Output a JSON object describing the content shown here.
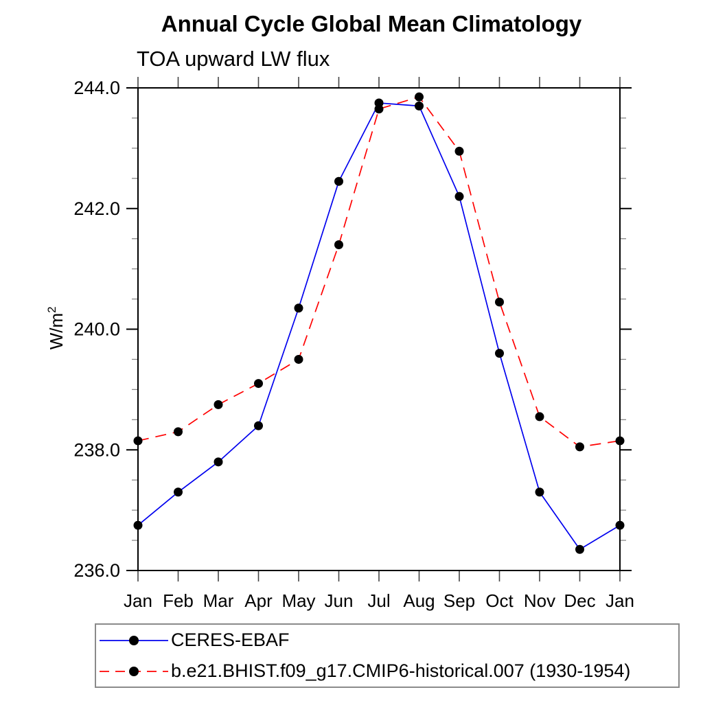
{
  "chart": {
    "title": "Annual Cycle Global Mean Climatology",
    "subtitle": "TOA upward LW flux",
    "ylabel_base": "W/m",
    "ylabel_sup": "2"
  },
  "chart_data": {
    "type": "line",
    "title": "Annual Cycle Global Mean Climatology",
    "subtitle": "TOA upward LW flux",
    "xlabel": "",
    "ylabel": "W/m^2",
    "categories": [
      "Jan",
      "Feb",
      "Mar",
      "Apr",
      "May",
      "Jun",
      "Jul",
      "Aug",
      "Sep",
      "Oct",
      "Nov",
      "Dec",
      "Jan"
    ],
    "ylim": [
      236.0,
      244.0
    ],
    "ytick_major": [
      236.0,
      238.0,
      240.0,
      242.0,
      244.0
    ],
    "ytick_major_labels": [
      "236.0",
      "238.0",
      "240.0",
      "242.0",
      "244.0"
    ],
    "ytick_minor_step": 0.5,
    "grid": false,
    "legend_position": "bottom-left",
    "axis_color": "#000000",
    "minor_tick_color": "#888888",
    "month_tick_color": "#444444",
    "marker_color": "#000000",
    "series": [
      {
        "name": "CERES-EBAF",
        "color": "#0000ee",
        "style": "solid",
        "marker": "circle",
        "values": [
          236.75,
          237.3,
          237.8,
          238.4,
          240.35,
          242.45,
          243.75,
          243.7,
          242.2,
          239.6,
          237.3,
          236.35,
          236.75
        ]
      },
      {
        "name": "b.e21.BHIST.f09_g17.CMIP6-historical.007 (1930-1954)",
        "color": "#ff0000",
        "style": "dashed",
        "marker": "circle",
        "values": [
          238.15,
          238.3,
          238.75,
          239.1,
          239.5,
          241.4,
          243.65,
          243.85,
          242.95,
          240.45,
          238.55,
          238.05,
          238.15
        ]
      }
    ]
  }
}
